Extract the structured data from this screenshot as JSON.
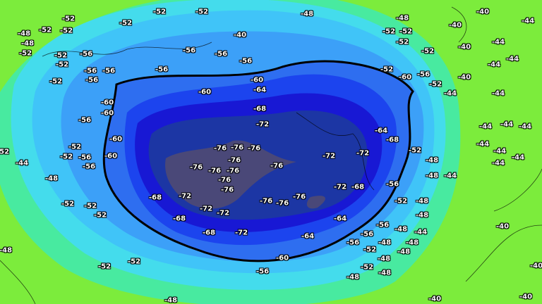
{
  "map": {
    "type": "contour temperature map, polar projection",
    "contour_levels": [
      -76,
      -72,
      -68,
      -64,
      -60,
      -56,
      -52,
      -48,
      -44,
      -40
    ],
    "level_colors": {
      "-40": "#7cec3c",
      "-44": "#48eaa0",
      "-48": "#44dcec",
      "-52": "#40c4f8",
      "-56": "#3ca0f8",
      "-60": "#2e6ef0",
      "-64": "#1c44ee",
      "-68": "#1818d4",
      "-72": "#1c36a4",
      "-76": "#4a4878"
    },
    "highlighted_contour": -60
  },
  "contour_labels": [
    "-52",
    "-52",
    "-52",
    "-52",
    "-48",
    "-48",
    "-52",
    "-52",
    "-52",
    "-52",
    "-40",
    "-40",
    "-44",
    "-40",
    "-44",
    "-44",
    "-44",
    "-40",
    "-44",
    "-44",
    "-44",
    "-44",
    "-44",
    "-44",
    "-44",
    "-44",
    "-44",
    "-44",
    "-48",
    "-48",
    "-52",
    "-56",
    "-52",
    "-48",
    "-48",
    "-44",
    "-48",
    "-56",
    "-56",
    "-56",
    "-52",
    "-48",
    "-48",
    "-48",
    "-48",
    "-52",
    "-48",
    "-48",
    "-40",
    "-40",
    "-40",
    "-40",
    "-60",
    "-56",
    "-64",
    "-64",
    "-72",
    "-68",
    "-68",
    "-68",
    "-72",
    "-72",
    "-72",
    "-76",
    "-76",
    "-76",
    "-72",
    "-68",
    "-72",
    "-72",
    "-64",
    "-68",
    "-76",
    "-76",
    "-76",
    "-76",
    "-76",
    "-76",
    "-76",
    "-76",
    "-76",
    "-76",
    "-72",
    "-68",
    "-64",
    "-60",
    "-60",
    "-60",
    "-60",
    "-60",
    "-60",
    "-56",
    "-56",
    "-56",
    "-56",
    "-56",
    "-56",
    "-56",
    "-56",
    "-56",
    "-56",
    "-56",
    "-52",
    "-52",
    "-52",
    "-52",
    "-52",
    "-48",
    "-52",
    "-48",
    "-52",
    "-52",
    "-52",
    "-44",
    "-48",
    "-52",
    "-52",
    "-52",
    "-52",
    "-52",
    "-48",
    "-48",
    "-40",
    "-52",
    "-60",
    "-56",
    "-52",
    "-48"
  ]
}
